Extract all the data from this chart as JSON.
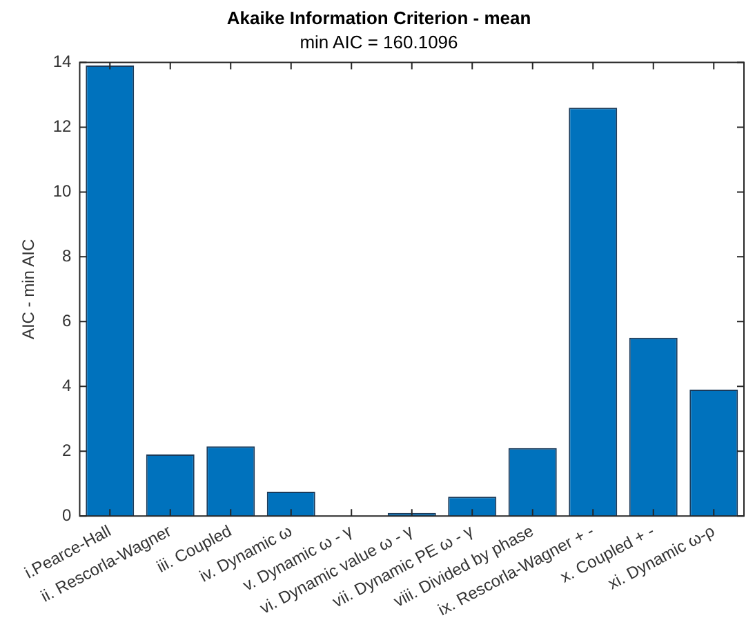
{
  "chart_data": {
    "type": "bar",
    "title": "Akaike Information Criterion - mean",
    "subtitle": "min AIC = 160.1096",
    "ylabel": "AIC - min AIC",
    "categories": [
      "i.Pearce-Hall",
      "ii. Rescorla-Wagner",
      "iii. Coupled",
      "iv. Dynamic ω",
      "v. Dynamic ω - γ",
      "vi. Dynamic value ω - γ",
      "vii. Dynamic PE ω - γ",
      "viii. Divided by phase",
      "ix. Rescorla-Wagner + -",
      "x. Coupled + -",
      "xi. Dynamic ω-ρ"
    ],
    "values": [
      13.9,
      1.9,
      2.15,
      0.75,
      0,
      0.1,
      0.6,
      2.1,
      12.6,
      5.5,
      3.9
    ],
    "color": "#0072bd",
    "ylim": [
      0,
      14
    ],
    "yticks": [
      0,
      2,
      4,
      6,
      8,
      10,
      12,
      14
    ],
    "grid": false,
    "legend": false
  }
}
